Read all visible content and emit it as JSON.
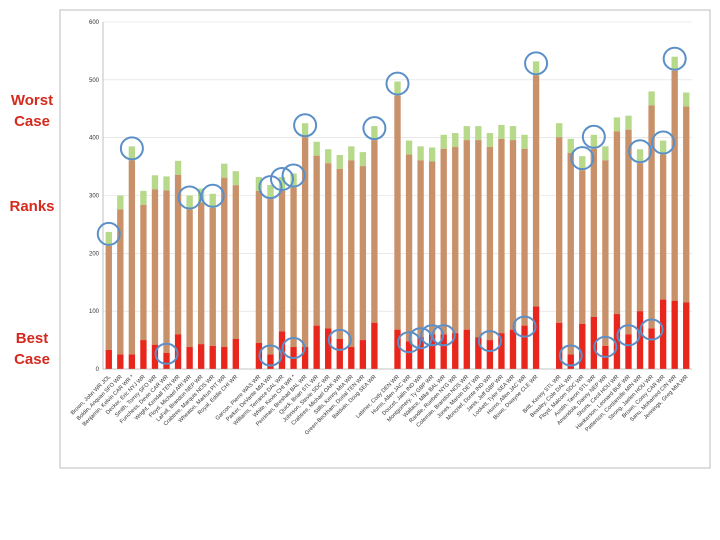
{
  "side_labels": {
    "worst": [
      "Worst",
      "Case"
    ],
    "ranks": "Ranks",
    "best": [
      "Best",
      "Case"
    ]
  },
  "colors": {
    "best_segment": "#e8261c",
    "range_segment": "#c9916a",
    "worst_segment": "#b6d98a",
    "circle": "#5a8fc8",
    "grid": "#dcdcdc",
    "frame": "#bdbdbd"
  },
  "chart_data": {
    "type": "bar",
    "stacked": true,
    "ylim": [
      0,
      600
    ],
    "yticks": [
      0,
      100,
      200,
      300,
      400,
      500,
      600
    ],
    "grid": true,
    "groups": [
      {
        "categories": [
          "Brown, John WR JOL",
          "Boldin, Anquan SFO WR",
          "Benjamin, Kelvin CAR WR *",
          "Decker, Eric NYJ WR",
          "Smith, Torrey SFO WR",
          "Funchess, Devin CAR WR",
          "Wright, Kendall TEN WR",
          "Floyd, Michael ARI WR",
          "LaFell, Brandon NEP WR",
          "Crabtree, Marquis NOS WR",
          "Wheaton, Markus PIT WR",
          "Royal, Eddie CHI WR"
        ],
        "best": [
          33,
          25,
          25,
          50,
          42,
          28,
          60,
          38,
          43,
          40,
          38,
          52
        ],
        "worst": [
          237,
          300,
          385,
          308,
          335,
          333,
          360,
          300,
          312,
          303,
          355,
          342
        ]
      },
      {
        "categories": [
          "Garcon, Pierre WAS WR",
          "Parker, DeVante MIA WR",
          "Williams, Terrance DAL WR",
          "White, Kevin CHI WR *",
          "Perriman, Breshad BAL WR",
          "Quick, Brian STL WR",
          "Johnson, Stevie SDC WR",
          "Crabtree, Michael OAK WR",
          "Stills, Kenny MIA WR",
          "Green-Beckham, Dorial TEN WR",
          "Baldwin, Doug SEA WR"
        ],
        "best": [
          45,
          25,
          65,
          38,
          38,
          75,
          70,
          52,
          38,
          50,
          80
        ],
        "worst": [
          332,
          318,
          332,
          338,
          425,
          393,
          380,
          370,
          385,
          375,
          420
        ]
      },
      {
        "categories": [
          "Latimer, Cody DEN WR",
          "Hurns, Allen JAC WR",
          "Doucet, Jalin IND WR",
          "Montgomery, Ty GBP WR",
          "Wallace, Mike BAL WR",
          "Randle, Rueben NYG WR",
          "Coleman, Brandon NOS WR",
          "Jones, Marvin DET WR",
          "Moncrief, Donte IND WR",
          "Janis, Jeff GBP WR",
          "Lockett, Tyler SEA WR",
          "Hurns, Allen JAC WR",
          "Bowe, Dwayne CLE WR"
        ],
        "best": [
          68,
          48,
          55,
          60,
          60,
          62,
          68,
          55,
          50,
          62,
          68,
          75,
          108
        ],
        "worst": [
          497,
          395,
          385,
          383,
          405,
          408,
          420,
          420,
          408,
          422,
          420,
          405,
          532
        ]
      },
      {
        "categories": [
          "Britt, Kenny STL WR",
          "Beasley, Cole DAL WR",
          "Floyd, Malcom SDC WR",
          "Austin, Tavon STL WR",
          "Amendola, Danny NEP WR",
          "Shorts, Cecil HOU WR",
          "Hankerson, Leonard BUF WR",
          "Patterson, Cordarrelle MIN WR",
          "Strong, Jaelen HOU WR",
          "Brown, Corey CAR WR",
          "Sanu, Mohamed CIN WR",
          "Jennings, Greg MIA WR"
        ],
        "best": [
          80,
          25,
          78,
          90,
          40,
          95,
          60,
          100,
          70,
          120,
          118,
          115
        ],
        "worst": [
          425,
          398,
          368,
          405,
          385,
          435,
          438,
          380,
          480,
          395,
          540,
          478
        ]
      }
    ],
    "circled": {
      "worst": [
        "Brown, John WR JOL",
        "Benjamin, Kelvin CAR WR *",
        "Floyd, Michael ARI WR",
        "Crabtree, Marquis NOS WR",
        "Parker, DeVante MIA WR",
        "Williams, Terrance DAL WR",
        "White, Kevin CHI WR *",
        "Perriman, Breshad BAL WR",
        "Baldwin, Doug SEA WR",
        "Latimer, Cody DEN WR",
        "Bowe, Dwayne CLE WR",
        "Floyd, Malcom SDC WR",
        "Austin, Tavon STL WR",
        "Patterson, Cordarrelle MIN WR",
        "Brown, Corey CAR WR",
        "Sanu, Mohamed CIN WR"
      ],
      "best": [
        "Funchess, Devin CAR WR",
        "Parker, DeVante MIA WR",
        "White, Kevin CHI WR *",
        "Crabtree, Michael OAK WR",
        "Hurns, Allen JAC WR",
        "Doucet, Jalin IND WR",
        "Montgomery, Ty GBP WR",
        "Wallace, Mike BAL WR",
        "Moncrief, Donte IND WR",
        "Beasley, Cole DAL WR",
        "Amendola, Danny NEP WR",
        "Hankerson, Leonard BUF WR",
        "Strong, Jaelen HOU WR"
      ]
    }
  }
}
